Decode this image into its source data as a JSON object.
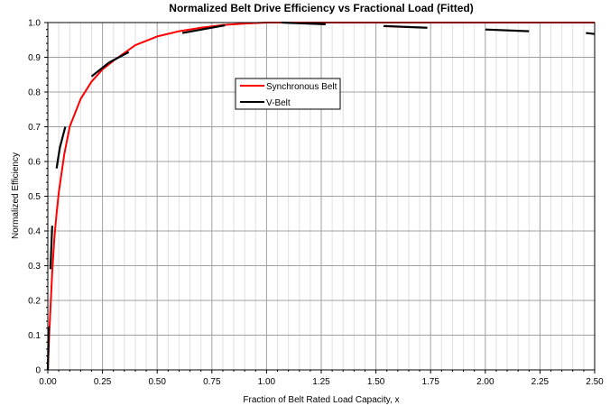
{
  "chart_data": {
    "type": "line",
    "title": "Normalized Belt Drive Efficiency vs Fractional Load (Fitted)",
    "xlabel": "Fraction of Belt Rated Load Capacity, x",
    "ylabel": "Normalized Efficiency",
    "xlim": [
      0,
      2.5
    ],
    "ylim": [
      0,
      1.0
    ],
    "x_ticks": [
      "0.00",
      "0.25",
      "0.50",
      "0.75",
      "1.00",
      "1.25",
      "1.50",
      "1.75",
      "2.00",
      "2.25",
      "2.50"
    ],
    "y_ticks": [
      "0",
      "0.1",
      "0.2",
      "0.3",
      "0.4",
      "0.5",
      "0.6",
      "0.7",
      "0.8",
      "0.9",
      "1.0"
    ],
    "grid": true,
    "legend": "upper-center",
    "series": [
      {
        "name": "Synchronous Belt",
        "color": "#ff0000",
        "points": [
          [
            0,
            0
          ],
          [
            0.005,
            0.08
          ],
          [
            0.01,
            0.15
          ],
          [
            0.02,
            0.28
          ],
          [
            0.03,
            0.38
          ],
          [
            0.04,
            0.45
          ],
          [
            0.05,
            0.51
          ],
          [
            0.075,
            0.62
          ],
          [
            0.1,
            0.7
          ],
          [
            0.15,
            0.78
          ],
          [
            0.2,
            0.83
          ],
          [
            0.25,
            0.865
          ],
          [
            0.3,
            0.89
          ],
          [
            0.4,
            0.935
          ],
          [
            0.5,
            0.96
          ],
          [
            0.6,
            0.975
          ],
          [
            0.7,
            0.985
          ],
          [
            0.8,
            0.993
          ],
          [
            0.9,
            0.997
          ],
          [
            1.0,
            1.0
          ],
          [
            1.25,
            1.0
          ],
          [
            2.5,
            1.0
          ]
        ]
      },
      {
        "name": "V-Belt",
        "color": "#000000",
        "segments": [
          [
            [
              0,
              0
            ],
            [
              0.004,
              0.125
            ]
          ],
          [
            [
              0.012,
              0.29
            ],
            [
              0.02,
              0.415
            ]
          ],
          [
            [
              0.04,
              0.58
            ],
            [
              0.055,
              0.64
            ],
            [
              0.08,
              0.7
            ]
          ],
          [
            [
              0.2,
              0.845
            ],
            [
              0.28,
              0.885
            ],
            [
              0.37,
              0.915
            ]
          ],
          [
            [
              0.615,
              0.97
            ],
            [
              0.81,
              0.992
            ]
          ],
          [
            [
              1.07,
              1.0
            ],
            [
              1.27,
              0.995
            ]
          ],
          [
            [
              1.535,
              0.99
            ],
            [
              1.735,
              0.985
            ]
          ],
          [
            [
              2.0,
              0.98
            ],
            [
              2.2,
              0.975
            ]
          ],
          [
            [
              2.46,
              0.97
            ],
            [
              2.5,
              0.967
            ]
          ]
        ]
      }
    ]
  }
}
